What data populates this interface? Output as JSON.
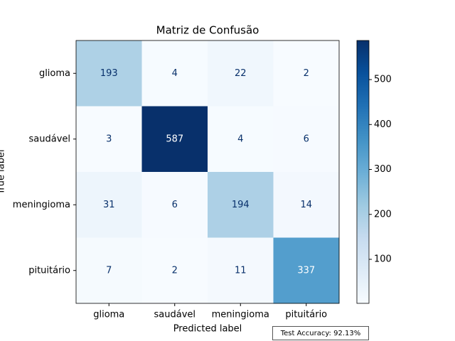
{
  "chart_data": {
    "type": "heatmap",
    "title": "Matriz de Confusão",
    "xlabel": "Predicted label",
    "ylabel": "True label",
    "columns": [
      "glioma",
      "saudável",
      "meningioma",
      "pituitário"
    ],
    "rows": [
      "glioma",
      "saudável",
      "meningioma",
      "pituitário"
    ],
    "values": [
      [
        193,
        4,
        22,
        2
      ],
      [
        3,
        587,
        4,
        6
      ],
      [
        31,
        6,
        194,
        14
      ],
      [
        7,
        2,
        11,
        337
      ]
    ],
    "colormap": "Blues",
    "clim": [
      2,
      587
    ],
    "cticks": [
      100,
      200,
      300,
      400,
      500
    ],
    "annotation": "Test Accuracy: 92.13%"
  }
}
